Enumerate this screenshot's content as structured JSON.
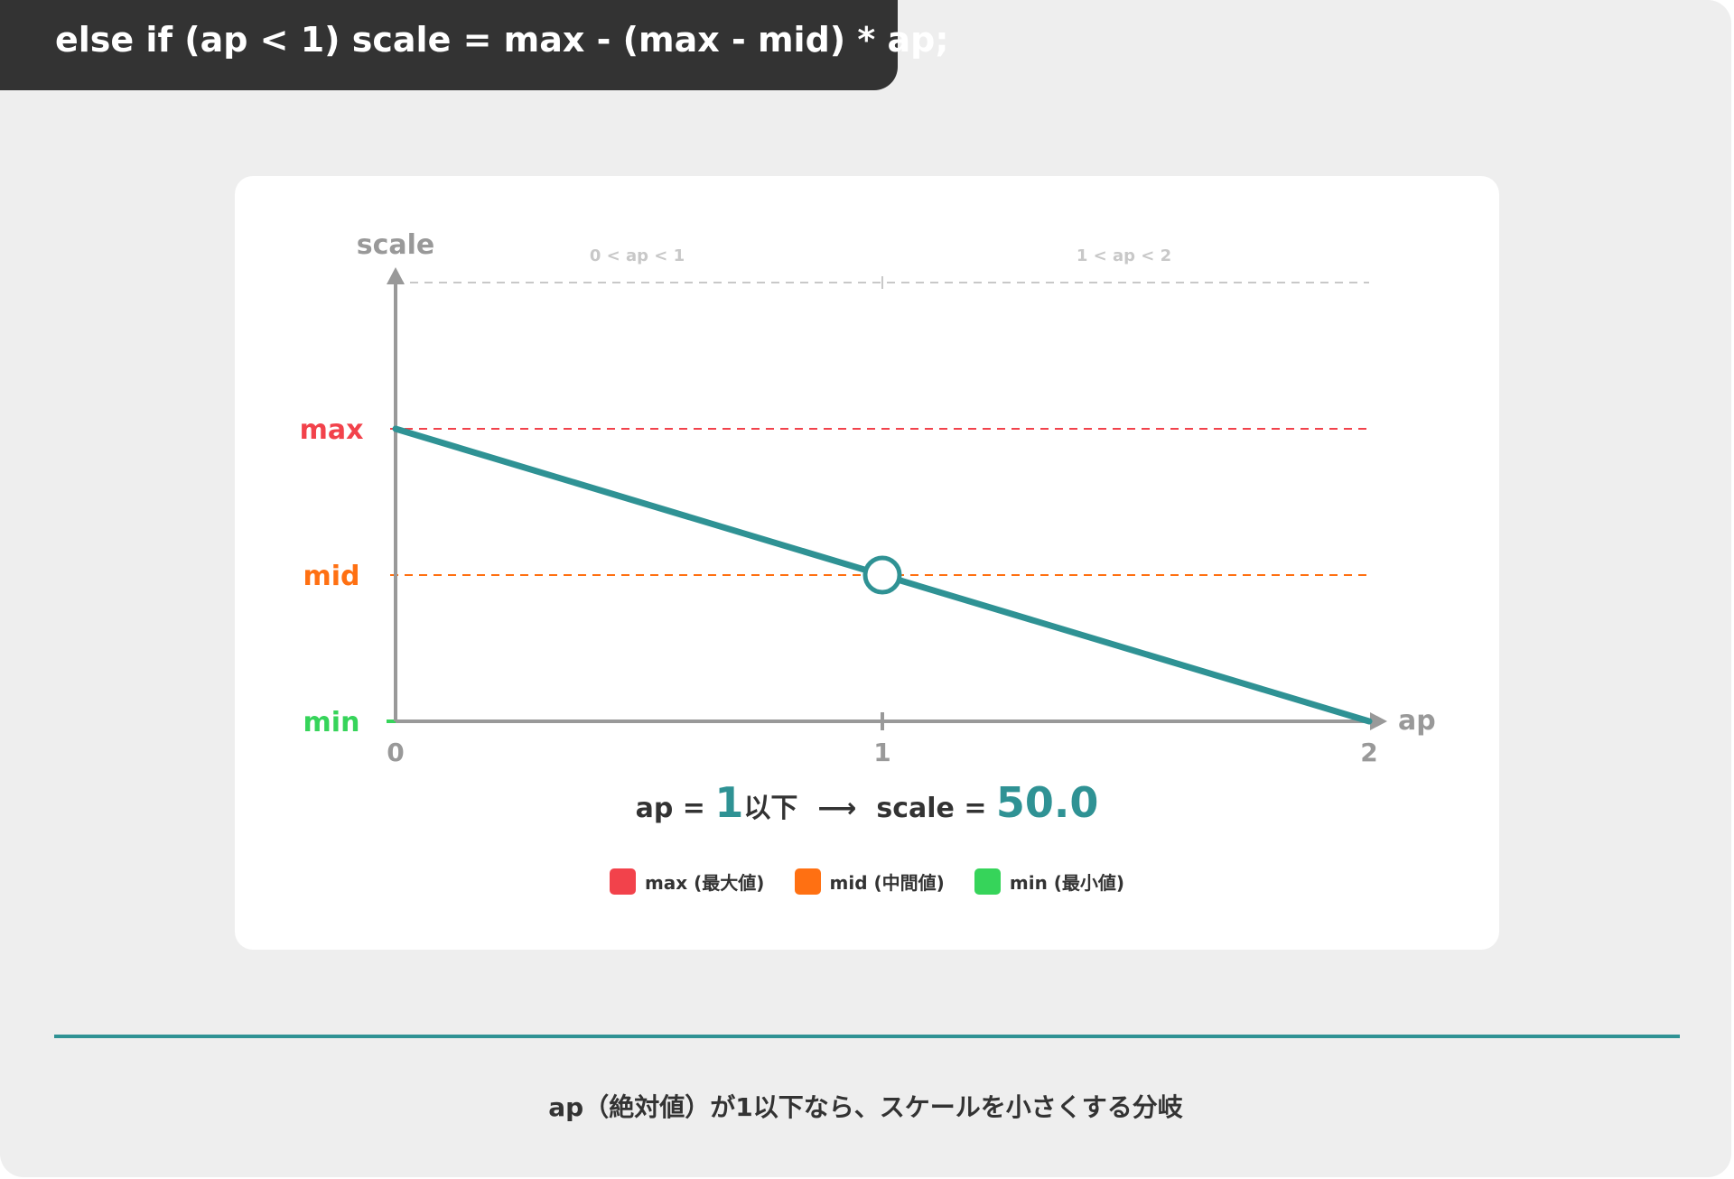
{
  "header": {
    "code": "else if (ap < 1) scale = max - (max - mid) * ap;"
  },
  "chart_data": {
    "type": "line",
    "xlabel": "ap",
    "ylabel": "scale",
    "x_ticks": [
      "0",
      "1",
      "2"
    ],
    "y_levels": [
      {
        "name": "max",
        "label": "max",
        "value": 2,
        "color": "#f2424b"
      },
      {
        "name": "mid",
        "label": "mid",
        "value": 1,
        "color": "#ff7012"
      },
      {
        "name": "min",
        "label": "min",
        "value": 0,
        "color": "#36d45a"
      }
    ],
    "xlim": [
      0,
      2
    ],
    "ylim": [
      0,
      3
    ],
    "top_reference_value": 3,
    "region_labels": [
      {
        "label": "0 < ap < 1",
        "x": 0.5
      },
      {
        "label": "1 < ap < 2",
        "x": 1.5
      }
    ],
    "series": [
      {
        "x": [
          0,
          1,
          2
        ],
        "y": [
          2,
          1,
          0
        ],
        "color": "#2f9294"
      }
    ],
    "highlight_point": {
      "x": 1,
      "y": 1
    },
    "axis_color": "#999999",
    "grid": false
  },
  "summary": {
    "ap_prefix": "ap = ",
    "ap_value": "1",
    "ap_suffix": "以下",
    "arrow": "⟶",
    "scale_prefix": "scale = ",
    "scale_value": "50.0"
  },
  "legend": [
    {
      "label": "max (最大値)",
      "color": "#f2424b"
    },
    {
      "label": "mid (中間値)",
      "color": "#ff7012"
    },
    {
      "label": "min (最小値)",
      "color": "#36d45a"
    }
  ],
  "caption": "ap（絶対値）が1以下なら、スケールを小さくする分岐",
  "colors": {
    "accent": "#2f9294",
    "text": "#333333",
    "background": "#eeeeee"
  }
}
